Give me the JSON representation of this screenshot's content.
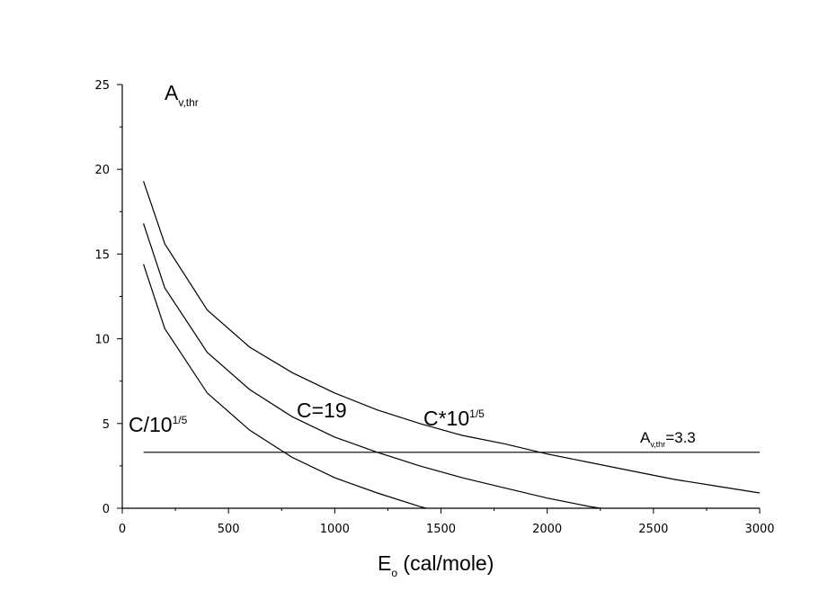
{
  "chart_data": {
    "type": "line",
    "x": [
      100,
      200,
      400,
      600,
      800,
      1000,
      1200,
      1400,
      1600,
      1800,
      2000,
      2200,
      2400,
      2600,
      2800,
      3000
    ],
    "series": [
      {
        "name": "C/10",
        "name_sup": "1/5",
        "values": [
          14.4,
          10.6,
          6.8,
          4.6,
          3.0,
          1.8,
          0.9,
          0.1,
          null,
          null,
          null,
          null,
          null,
          null,
          null,
          null
        ]
      },
      {
        "name": "C=19",
        "values": [
          16.8,
          13.0,
          9.2,
          7.0,
          5.4,
          4.2,
          3.3,
          2.5,
          1.8,
          1.2,
          0.6,
          0.1,
          null,
          null,
          null,
          null
        ]
      },
      {
        "name": "C*10",
        "name_sup": "1/5",
        "values": [
          19.3,
          15.6,
          11.7,
          9.5,
          8.0,
          6.8,
          5.8,
          5.0,
          4.3,
          3.8,
          3.2,
          2.7,
          2.2,
          1.7,
          1.3,
          0.9
        ]
      }
    ],
    "series_end_x": [
      1430,
      2250,
      3000
    ],
    "reference_line": {
      "y": 3.3,
      "x_from": 100,
      "x_to": 3000,
      "label_main": "A",
      "label_sub": "v,thr",
      "label_tail": "=3.3"
    },
    "xlabel_main": "E",
    "xlabel_sub": "o",
    "xlabel_tail": " (cal/mole)",
    "ylabel_main": "A",
    "ylabel_sub": "v,thr",
    "xlim": [
      0,
      3000
    ],
    "ylim": [
      0,
      25
    ],
    "xticks": [
      0,
      500,
      1000,
      1500,
      2000,
      2500,
      3000
    ],
    "yticks": [
      0,
      5,
      10,
      15,
      20,
      25
    ],
    "grid": false,
    "legend": "none"
  }
}
